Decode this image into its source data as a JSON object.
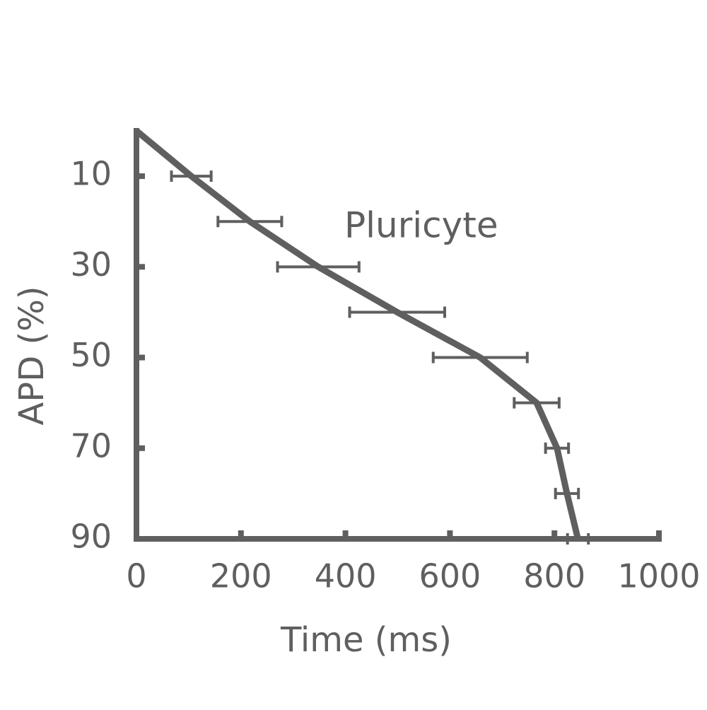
{
  "chart_data": {
    "type": "line",
    "x_label": "Time (ms)",
    "y_label": "APD (%)",
    "annotation": "Pluricyte",
    "series": [
      {
        "color": "#5f5f5f",
        "x": [
          0,
          105,
          217,
          348,
          499,
          658,
          766,
          805,
          824,
          845
        ],
        "values": [
          0,
          10,
          20,
          30,
          40,
          50,
          60,
          70,
          80,
          90
        ],
        "xerr": [
          null,
          38,
          61,
          78,
          91,
          90,
          43,
          22,
          22,
          20
        ]
      }
    ],
    "xlim": [
      0,
      1000
    ],
    "xticks": [
      0,
      200,
      400,
      600,
      800,
      1000
    ],
    "ylim": [
      0,
      90
    ],
    "yticks": [
      10,
      30,
      50,
      70,
      90
    ],
    "y_inverted": true
  }
}
